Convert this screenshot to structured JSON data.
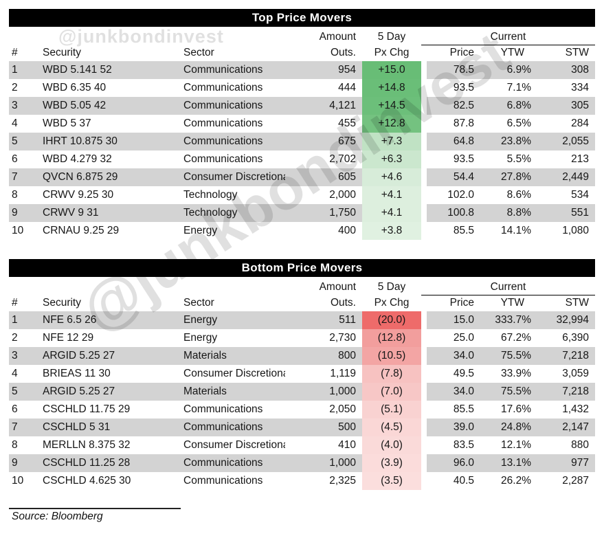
{
  "watermarks": {
    "small": "@junkbondinvest",
    "large": "@junkbondinvest"
  },
  "source_note": "Source: Bloomberg",
  "colors": {
    "stripe_row": "#d3d3d3",
    "title_bar_bg": "#000000",
    "title_bar_text": "#ffffff",
    "gain_strong": "#68bd76",
    "loss_strong": "#ee6b6a"
  },
  "chart_data": [
    {
      "type": "table",
      "title": "Top Price Movers",
      "headers": {
        "rank": "#",
        "security": "Security",
        "sector": "Sector",
        "amount_line1": "Amount",
        "amount_line2": "Outs.",
        "chg_line1": "5 Day",
        "chg_line2": "Px Chg",
        "current_group": "Current",
        "price": "Price",
        "ytw": "YTW",
        "stw": "STW"
      },
      "rows": [
        {
          "num": "1",
          "security": "WBD 5.141 52",
          "sector": "Communications",
          "amount_outs": "954",
          "px_chg_5d": "+15.0",
          "px_chg_color": "#68bd76",
          "price": "78.5",
          "ytw": "6.9%",
          "stw": "308"
        },
        {
          "num": "2",
          "security": "WBD 6.35 40",
          "sector": "Communications",
          "amount_outs": "444",
          "px_chg_5d": "+14.8",
          "px_chg_color": "#6abe78",
          "price": "93.5",
          "ytw": "7.1%",
          "stw": "334"
        },
        {
          "num": "3",
          "security": "WBD 5.05 42",
          "sector": "Communications",
          "amount_outs": "4,121",
          "px_chg_5d": "+14.5",
          "px_chg_color": "#6cbf7a",
          "price": "82.5",
          "ytw": "6.8%",
          "stw": "305"
        },
        {
          "num": "4",
          "security": "WBD 5 37",
          "sector": "Communications",
          "amount_outs": "455",
          "px_chg_5d": "+12.8",
          "px_chg_color": "#74c280",
          "price": "87.8",
          "ytw": "6.5%",
          "stw": "284"
        },
        {
          "num": "5",
          "security": "IHRT 10.875 30",
          "sector": "Communications",
          "amount_outs": "675",
          "px_chg_5d": "+7.3",
          "px_chg_color": "#c0e2c4",
          "price": "64.8",
          "ytw": "23.8%",
          "stw": "2,055"
        },
        {
          "num": "6",
          "security": "WBD 4.279 32",
          "sector": "Communications",
          "amount_outs": "2,702",
          "px_chg_5d": "+6.3",
          "px_chg_color": "#cbe7ce",
          "price": "93.5",
          "ytw": "5.5%",
          "stw": "213"
        },
        {
          "num": "7",
          "security": "QVCN 6.875 29",
          "sector": "Consumer Discretionary",
          "amount_outs": "605",
          "px_chg_5d": "+4.6",
          "px_chg_color": "#d7ecd9",
          "price": "54.4",
          "ytw": "27.8%",
          "stw": "2,449"
        },
        {
          "num": "8",
          "security": "CRWV 9.25 30",
          "sector": "Technology",
          "amount_outs": "2,000",
          "px_chg_5d": "+4.1",
          "px_chg_color": "#ddefde",
          "price": "102.0",
          "ytw": "8.6%",
          "stw": "534"
        },
        {
          "num": "9",
          "security": "CRWV 9 31",
          "sector": "Technology",
          "amount_outs": "1,750",
          "px_chg_5d": "+4.1",
          "px_chg_color": "#ddefde",
          "price": "100.8",
          "ytw": "8.8%",
          "stw": "551"
        },
        {
          "num": "10",
          "security": "CRNAU 9.25 29",
          "sector": "Energy",
          "amount_outs": "400",
          "px_chg_5d": "+3.8",
          "px_chg_color": "#e0f1e1",
          "price": "85.5",
          "ytw": "14.1%",
          "stw": "1,080"
        }
      ]
    },
    {
      "type": "table",
      "title": "Bottom Price Movers",
      "headers": {
        "rank": "#",
        "security": "Security",
        "sector": "Sector",
        "amount_line1": "Amount",
        "amount_line2": "Outs.",
        "chg_line1": "5 Day",
        "chg_line2": "Px Chg",
        "current_group": "Current",
        "price": "Price",
        "ytw": "YTW",
        "stw": "STW"
      },
      "rows": [
        {
          "num": "1",
          "security": "NFE 6.5 26",
          "sector": "Energy",
          "amount_outs": "511",
          "px_chg_5d": "(20.0)",
          "px_chg_color": "#ee6b6a",
          "price": "15.0",
          "ytw": "333.7%",
          "stw": "32,994"
        },
        {
          "num": "2",
          "security": "NFE 12 29",
          "sector": "Energy",
          "amount_outs": "2,730",
          "px_chg_5d": "(12.8)",
          "px_chg_color": "#f29e9d",
          "price": "25.0",
          "ytw": "67.2%",
          "stw": "6,390"
        },
        {
          "num": "3",
          "security": "ARGID 5.25 27",
          "sector": "Materials",
          "amount_outs": "800",
          "px_chg_5d": "(10.5)",
          "px_chg_color": "#f3a5a4",
          "price": "34.0",
          "ytw": "75.5%",
          "stw": "7,218"
        },
        {
          "num": "4",
          "security": "BRIEAS 11 30",
          "sector": "Consumer Discretionary",
          "amount_outs": "1,119",
          "px_chg_5d": "(7.8)",
          "px_chg_color": "#f7c2c1",
          "price": "49.5",
          "ytw": "33.9%",
          "stw": "3,059"
        },
        {
          "num": "5",
          "security": "ARGID 5.25 27",
          "sector": "Materials",
          "amount_outs": "1,000",
          "px_chg_5d": "(7.0)",
          "px_chg_color": "#f7c7c6",
          "price": "34.0",
          "ytw": "75.5%",
          "stw": "7,218"
        },
        {
          "num": "6",
          "security": "CSCHLD 11.75 29",
          "sector": "Communications",
          "amount_outs": "2,050",
          "px_chg_5d": "(5.1)",
          "px_chg_color": "#f9d2d1",
          "price": "85.5",
          "ytw": "17.6%",
          "stw": "1,432"
        },
        {
          "num": "7",
          "security": "CSCHLD 5 31",
          "sector": "Communications",
          "amount_outs": "500",
          "px_chg_5d": "(4.5)",
          "px_chg_color": "#fad7d6",
          "price": "39.0",
          "ytw": "24.8%",
          "stw": "2,147"
        },
        {
          "num": "8",
          "security": "MERLLN 8.375 32",
          "sector": "Consumer Discretionary",
          "amount_outs": "410",
          "px_chg_5d": "(4.0)",
          "px_chg_color": "#fadad9",
          "price": "83.5",
          "ytw": "12.1%",
          "stw": "880"
        },
        {
          "num": "9",
          "security": "CSCHLD 11.25 28",
          "sector": "Communications",
          "amount_outs": "1,000",
          "px_chg_5d": "(3.9)",
          "px_chg_color": "#fbdcdb",
          "price": "96.0",
          "ytw": "13.1%",
          "stw": "977"
        },
        {
          "num": "10",
          "security": "CSCHLD 4.625 30",
          "sector": "Communications",
          "amount_outs": "2,325",
          "px_chg_5d": "(3.5)",
          "px_chg_color": "#fbdedd",
          "price": "40.5",
          "ytw": "26.2%",
          "stw": "2,287"
        }
      ]
    }
  ]
}
